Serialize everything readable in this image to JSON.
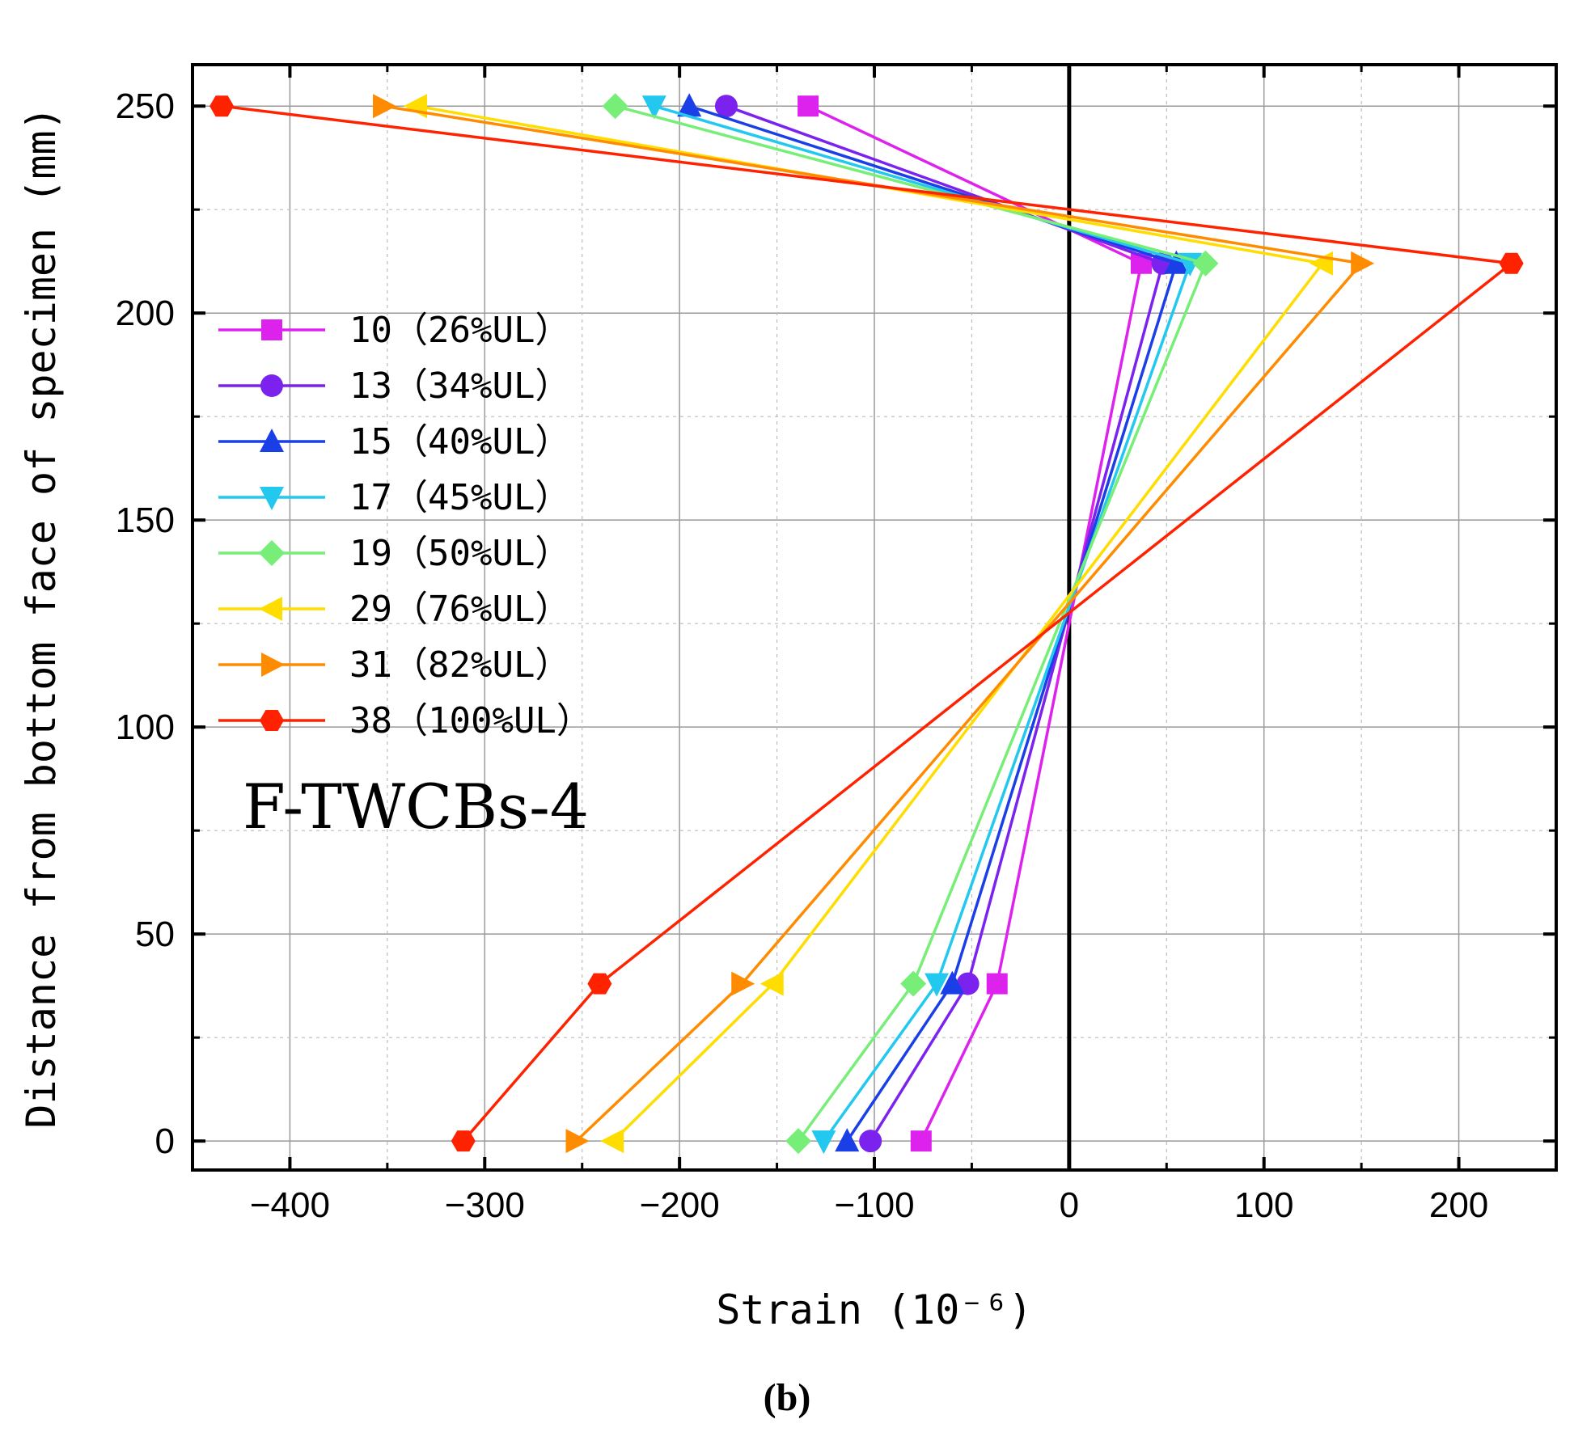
{
  "chart_data": {
    "type": "line",
    "title": "",
    "xlabel": "Strain (10⁻⁶)",
    "ylabel": "Distance from bottom face of specimen (mm)",
    "xlim": [
      -450,
      250
    ],
    "ylim": [
      -7,
      260
    ],
    "xticks": [
      -400,
      -300,
      -200,
      -100,
      0,
      100,
      200
    ],
    "yticks": [
      0,
      50,
      100,
      150,
      200,
      250
    ],
    "xtick_labels": [
      "−400",
      "−300",
      "−200",
      "−100",
      "0",
      "100",
      "200"
    ],
    "ytick_labels": [
      "0",
      "50",
      "100",
      "150",
      "200",
      "250"
    ],
    "grid": true,
    "legend_position": "left",
    "annotation": "F-TWCBs-4",
    "caption": "(b)",
    "y": [
      0,
      38,
      212,
      250
    ],
    "series": [
      {
        "name": "10（26%UL）",
        "color": "#dd22ee",
        "marker": "square",
        "x": [
          -76,
          -37,
          37,
          -134
        ]
      },
      {
        "name": "13（34%UL）",
        "color": "#7b22ee",
        "marker": "circle",
        "x": [
          -102,
          -52,
          48,
          -176
        ]
      },
      {
        "name": "15（40%UL）",
        "color": "#1a3fe6",
        "marker": "triangle-up",
        "x": [
          -114,
          -60,
          55,
          -195
        ]
      },
      {
        "name": "17（45%UL）",
        "color": "#22c8ee",
        "marker": "triangle-down",
        "x": [
          -126,
          -68,
          62,
          -213
        ]
      },
      {
        "name": "19（50%UL）",
        "color": "#77ee77",
        "marker": "diamond",
        "x": [
          -139,
          -80,
          70,
          -233
        ]
      },
      {
        "name": "29（76%UL）",
        "color": "#ffdd00",
        "marker": "triangle-left",
        "x": [
          -234,
          -152,
          130,
          -335
        ]
      },
      {
        "name": "31（82%UL）",
        "color": "#ff8c00",
        "marker": "triangle-right",
        "x": [
          -253,
          -168,
          150,
          -352
        ]
      },
      {
        "name": "38（100%UL）",
        "color": "#ff2200",
        "marker": "hexagon",
        "x": [
          -311,
          -241,
          227,
          -435
        ]
      }
    ]
  }
}
